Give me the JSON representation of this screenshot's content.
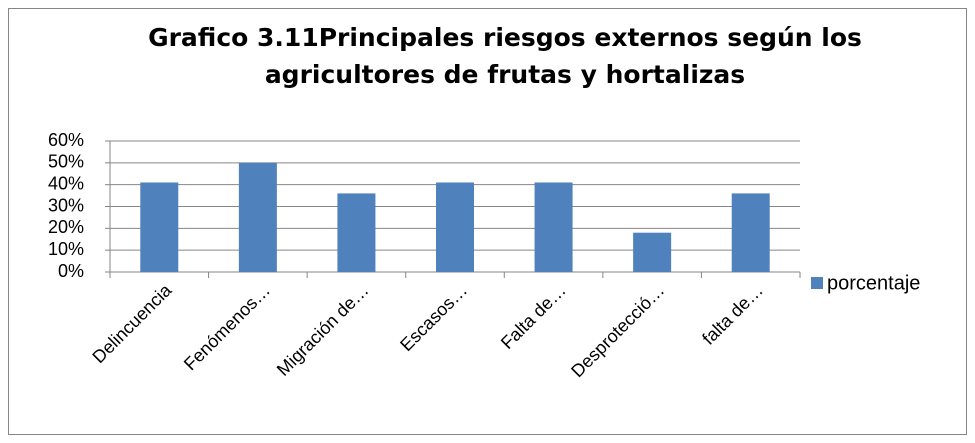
{
  "chart_data": {
    "type": "bar",
    "title": [
      "Grafico 3.11Principales riesgos externos según  los",
      "agricultores de frutas y hortalizas"
    ],
    "categories": [
      "Delincuencia",
      "Fenómenos…",
      "Migración de…",
      "Escasos…",
      "Falta de…",
      "Desprotecció…",
      "falta de…"
    ],
    "series": [
      {
        "name": "porcentaje",
        "color": "#4f81bd",
        "values": [
          41,
          50,
          36,
          41,
          41,
          18,
          36
        ]
      }
    ],
    "ylim": [
      0,
      60
    ],
    "yticks": [
      {
        "value": 0,
        "label": "0%"
      },
      {
        "value": 10,
        "label": "10%"
      },
      {
        "value": 20,
        "label": "20%"
      },
      {
        "value": 30,
        "label": "30%"
      },
      {
        "value": 40,
        "label": "40%"
      },
      {
        "value": 50,
        "label": "50%"
      },
      {
        "value": 60,
        "label": "60%"
      }
    ],
    "grid": true,
    "legend": "right"
  }
}
